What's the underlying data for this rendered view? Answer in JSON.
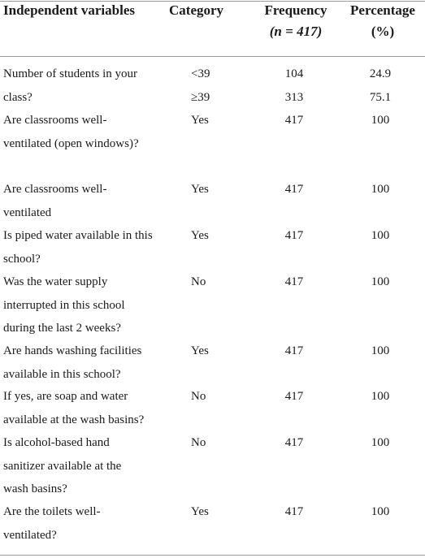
{
  "header": {
    "col1": "Independent variables",
    "col2": "Category",
    "col3_line1": "Frequency",
    "col3_line2": "(n = 417)",
    "col4_line1": "Percentage",
    "col4_line2": "(%)"
  },
  "rows": [
    {
      "question": "Number of students in your",
      "category": "<39",
      "frequency": "104",
      "percentage": "24.9"
    },
    {
      "question": "class?",
      "category": "≥39",
      "frequency": "313",
      "percentage": "75.1"
    },
    {
      "question": "Are classrooms well-ventilated (open windows)?",
      "category": "Yes",
      "frequency": "417",
      "percentage": "100"
    },
    {
      "question": "Are classrooms well-ventilated",
      "category": "Yes",
      "frequency": "417",
      "percentage": "100"
    },
    {
      "question": "Is piped water available in this school?",
      "category": "Yes",
      "frequency": "417",
      "percentage": "100"
    },
    {
      "question": "Was the water supply interrupted in this school during the last 2 weeks?",
      "category": "No",
      "frequency": "417",
      "percentage": "100"
    },
    {
      "question": "Are hands washing facilities available in this school?",
      "category": "Yes",
      "frequency": "417",
      "percentage": "100"
    },
    {
      "question": "If yes, are soap and water available at the wash basins?",
      "category": "No",
      "frequency": "417",
      "percentage": "100"
    },
    {
      "question": "Is alcohol-based hand sanitizer available at the wash basins?",
      "category": "No",
      "frequency": "417",
      "percentage": "100"
    },
    {
      "question": "Are the toilets well-ventilated?",
      "category": "Yes",
      "frequency": "417",
      "percentage": "100"
    }
  ]
}
